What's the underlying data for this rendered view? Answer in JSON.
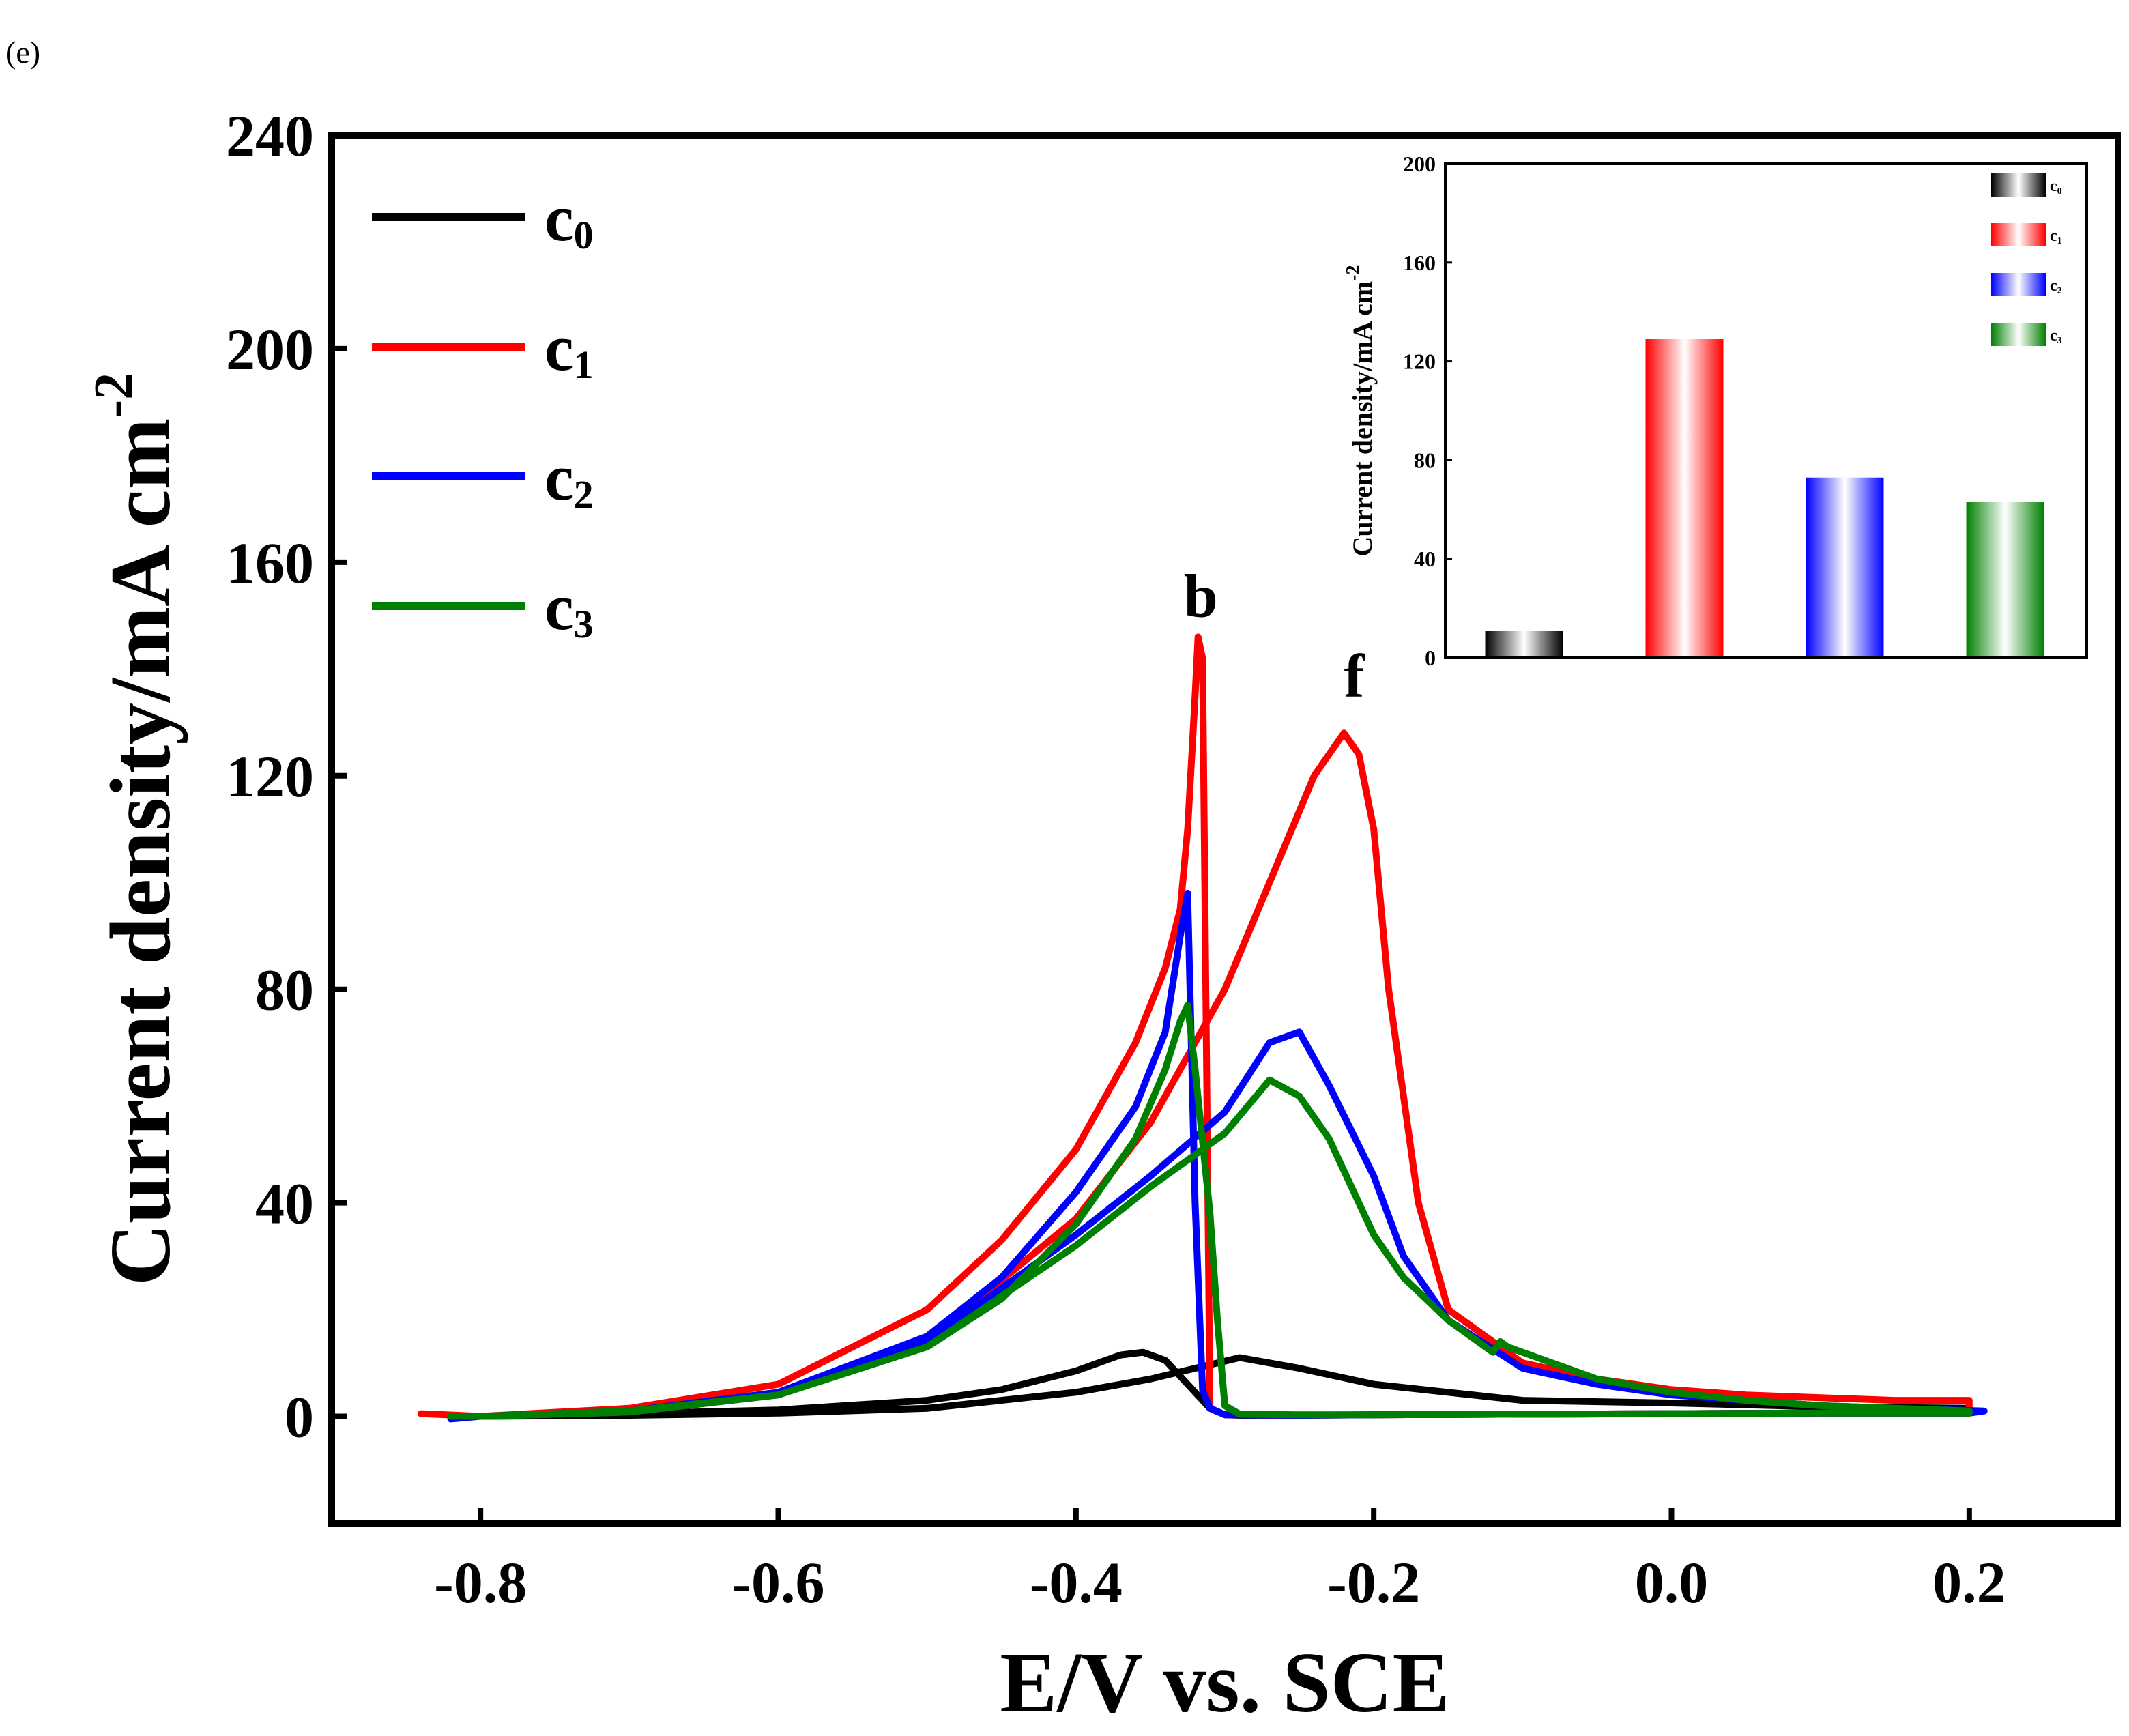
{
  "panel_label": "(e)",
  "chart_data": [
    {
      "type": "line",
      "title": "",
      "xlabel": "E/V vs. SCE",
      "ylabel": "Current density/mA cm",
      "ylabel_superscript": "-2",
      "xlim": [
        -0.9,
        0.3
      ],
      "ylim": [
        -20,
        240
      ],
      "xticks": [
        -0.8,
        -0.6,
        -0.4,
        -0.2,
        0.0,
        0.2
      ],
      "xtick_labels": [
        "-0.8",
        "-0.6",
        "-0.4",
        "-0.2",
        "0.0",
        "0.2"
      ],
      "yticks": [
        0,
        40,
        80,
        120,
        160,
        200,
        240
      ],
      "ytick_labels": [
        "0",
        "40",
        "80",
        "120",
        "160",
        "200",
        "240"
      ],
      "legend_position": "top-left",
      "annotations": [
        {
          "text": "b",
          "x": -0.318,
          "y": 147
        },
        {
          "text": "f",
          "x": -0.215,
          "y": 132
        }
      ],
      "series": [
        {
          "name": "c",
          "subscript": "0",
          "color": "#000000",
          "x": [
            -0.8,
            -0.7,
            -0.6,
            -0.5,
            -0.45,
            -0.4,
            -0.37,
            -0.355,
            -0.34,
            -0.325,
            -0.31,
            -0.3,
            -0.29,
            -0.2,
            -0.1,
            0.0,
            0.1,
            0.2,
            0.2,
            0.1,
            0.0,
            -0.1,
            -0.2,
            -0.25,
            -0.29,
            -0.32,
            -0.35,
            -0.4,
            -0.5,
            -0.6,
            -0.7,
            -0.8
          ],
          "y": [
            0,
            0.5,
            1.2,
            3,
            5,
            8.5,
            11.5,
            12,
            10.5,
            6,
            1.5,
            0.3,
            0.2,
            0.3,
            0.4,
            0.5,
            0.6,
            0.6,
            1.5,
            1.8,
            2.5,
            3,
            6,
            9,
            11,
            9,
            7,
            4.5,
            1.5,
            0.6,
            0.2,
            0
          ]
        },
        {
          "name": "c",
          "subscript": "1",
          "color": "#ff0000",
          "x": [
            -0.84,
            -0.8,
            -0.7,
            -0.6,
            -0.5,
            -0.45,
            -0.4,
            -0.36,
            -0.34,
            -0.33,
            -0.325,
            -0.32,
            -0.318,
            -0.315,
            -0.31,
            -0.3,
            -0.25,
            -0.2,
            -0.1,
            0.0,
            0.1,
            0.2,
            0.2,
            0.15,
            0.1,
            0.05,
            0.0,
            -0.05,
            -0.1,
            -0.15,
            -0.17,
            -0.19,
            -0.2,
            -0.21,
            -0.22,
            -0.24,
            -0.27,
            -0.3,
            -0.33,
            -0.35,
            -0.4,
            -0.5,
            -0.6,
            -0.7,
            -0.8,
            -0.82
          ],
          "y": [
            0.5,
            0,
            1.5,
            6,
            20,
            33,
            50,
            70,
            84,
            95,
            110,
            135,
            146,
            142,
            1.5,
            0.3,
            0.2,
            0.3,
            0.4,
            0.5,
            0.6,
            0.6,
            3,
            3,
            3.5,
            4,
            5,
            7,
            10,
            20,
            40,
            80,
            110,
            124,
            128,
            120,
            100,
            80,
            65,
            55,
            37,
            14,
            4,
            0.8,
            0,
            0
          ]
        },
        {
          "name": "c",
          "subscript": "2",
          "color": "#0000ff",
          "x": [
            -0.82,
            -0.8,
            -0.7,
            -0.6,
            -0.5,
            -0.45,
            -0.4,
            -0.36,
            -0.34,
            -0.33,
            -0.325,
            -0.32,
            -0.315,
            -0.31,
            -0.3,
            -0.25,
            -0.2,
            -0.1,
            0.0,
            0.1,
            0.2,
            0.21,
            0.15,
            0.1,
            0.05,
            0.0,
            -0.05,
            -0.1,
            -0.15,
            -0.18,
            -0.2,
            -0.23,
            -0.25,
            -0.27,
            -0.3,
            -0.35,
            -0.4,
            -0.5,
            -0.6,
            -0.7,
            -0.8
          ],
          "y": [
            -0.5,
            0,
            1,
            4.5,
            15,
            26,
            42,
            58,
            72,
            90,
            98,
            40,
            5,
            1.5,
            0.3,
            0.2,
            0.3,
            0.4,
            0.5,
            0.6,
            0.6,
            1,
            1.5,
            2,
            3,
            4,
            6,
            9,
            18,
            30,
            45,
            62,
            72,
            70,
            57,
            45,
            34,
            14,
            4,
            0.8,
            0
          ]
        },
        {
          "name": "c",
          "subscript": "3",
          "color": "#008000",
          "x": [
            -0.82,
            -0.8,
            -0.7,
            -0.6,
            -0.5,
            -0.45,
            -0.4,
            -0.36,
            -0.34,
            -0.33,
            -0.325,
            -0.32,
            -0.31,
            -0.305,
            -0.3,
            -0.29,
            -0.25,
            -0.2,
            -0.1,
            0.0,
            0.1,
            0.2,
            0.2,
            0.15,
            0.1,
            0.05,
            0.0,
            -0.05,
            -0.1,
            -0.11,
            -0.115,
            -0.12,
            -0.15,
            -0.18,
            -0.2,
            -0.23,
            -0.25,
            -0.27,
            -0.3,
            -0.35,
            -0.4,
            -0.5,
            -0.6,
            -0.7,
            -0.8
          ],
          "y": [
            0,
            0,
            1,
            4,
            13,
            22,
            36,
            52,
            65,
            74,
            77,
            65,
            38,
            18,
            2,
            0.4,
            0.3,
            0.3,
            0.4,
            0.5,
            0.6,
            0.6,
            1,
            1.5,
            2,
            3,
            4.5,
            7,
            12,
            13,
            14,
            12,
            18,
            26,
            34,
            52,
            60,
            63,
            53,
            43,
            32,
            13,
            4,
            0.8,
            0
          ]
        }
      ]
    },
    {
      "type": "bar",
      "title": "",
      "xlabel": "",
      "ylabel": "Current density/mA cm",
      "ylabel_superscript": "-2",
      "ylim": [
        0,
        200
      ],
      "yticks": [
        0,
        40,
        80,
        120,
        160,
        200
      ],
      "ytick_labels": [
        "0",
        "40",
        "80",
        "120",
        "160",
        "200"
      ],
      "legend_position": "top-right",
      "categories": [
        "c0",
        "c1",
        "c2",
        "c3"
      ],
      "legend": [
        {
          "name": "c",
          "subscript": "0"
        },
        {
          "name": "c",
          "subscript": "1"
        },
        {
          "name": "c",
          "subscript": "2"
        },
        {
          "name": "c",
          "subscript": "3"
        }
      ],
      "colors": [
        "#000000",
        "#ff0000",
        "#0000ff",
        "#008000"
      ],
      "values": [
        11,
        129,
        73,
        63
      ]
    }
  ]
}
